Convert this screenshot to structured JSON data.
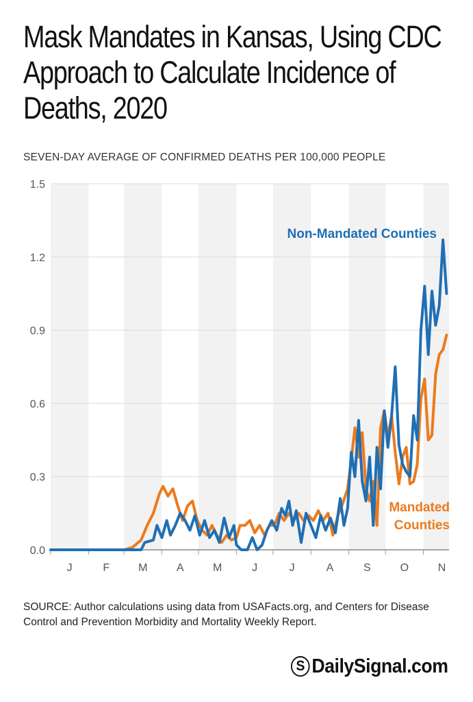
{
  "title": "Mask Mandates in Kansas, Using CDC Approach to Calculate Incidence of Deaths, 2020",
  "source": "SOURCE: Author calculations using data from USAFacts.org, and Centers for Disease Control and Prevention Morbidity and Mortality Weekly Report.",
  "brand": {
    "symbol": "S",
    "name": "DailySignal.com"
  },
  "colors": {
    "non_mandated": "#1f6fb5",
    "mandated": "#ec7a1c",
    "band": "#f2f2f2"
  },
  "chart_data": {
    "type": "line",
    "ylabel": "SEVEN-DAY AVERAGE OF CONFIRMED DEATHS PER 100,000 PEOPLE",
    "ylim": [
      0,
      1.5
    ],
    "yticks": [
      "0.0",
      "0.3",
      "0.6",
      "0.9",
      "1.2",
      "1.5"
    ],
    "xlim": [
      "2020-01-01",
      "2020-11-22"
    ],
    "xticks": [
      "J",
      "F",
      "M",
      "A",
      "M",
      "J",
      "J",
      "A",
      "S",
      "O",
      "N"
    ],
    "grid": true,
    "series": [
      {
        "name": "Non-Mandated Counties",
        "label_lines": [
          "Non-Mandated Counties"
        ],
        "color": "#1f6fb5",
        "points": [
          [
            "2020-01-01",
            0
          ],
          [
            "2020-03-15",
            0
          ],
          [
            "2020-03-18",
            0.03
          ],
          [
            "2020-03-25",
            0.04
          ],
          [
            "2020-03-28",
            0.1
          ],
          [
            "2020-04-01",
            0.05
          ],
          [
            "2020-04-05",
            0.12
          ],
          [
            "2020-04-08",
            0.06
          ],
          [
            "2020-04-12",
            0.1
          ],
          [
            "2020-04-16",
            0.15
          ],
          [
            "2020-04-20",
            0.12
          ],
          [
            "2020-04-24",
            0.08
          ],
          [
            "2020-04-28",
            0.14
          ],
          [
            "2020-05-02",
            0.06
          ],
          [
            "2020-05-06",
            0.12
          ],
          [
            "2020-05-10",
            0.05
          ],
          [
            "2020-05-14",
            0.08
          ],
          [
            "2020-05-18",
            0.03
          ],
          [
            "2020-05-22",
            0.13
          ],
          [
            "2020-05-26",
            0.05
          ],
          [
            "2020-05-30",
            0.1
          ],
          [
            "2020-06-01",
            0.02
          ],
          [
            "2020-06-05",
            0.0
          ],
          [
            "2020-06-10",
            0.0
          ],
          [
            "2020-06-14",
            0.05
          ],
          [
            "2020-06-18",
            0.0
          ],
          [
            "2020-06-22",
            0.02
          ],
          [
            "2020-06-26",
            0.08
          ],
          [
            "2020-06-30",
            0.12
          ],
          [
            "2020-07-04",
            0.08
          ],
          [
            "2020-07-08",
            0.17
          ],
          [
            "2020-07-11",
            0.14
          ],
          [
            "2020-07-14",
            0.2
          ],
          [
            "2020-07-17",
            0.1
          ],
          [
            "2020-07-20",
            0.16
          ],
          [
            "2020-07-24",
            0.03
          ],
          [
            "2020-07-28",
            0.15
          ],
          [
            "2020-08-01",
            0.1
          ],
          [
            "2020-08-05",
            0.05
          ],
          [
            "2020-08-09",
            0.14
          ],
          [
            "2020-08-13",
            0.08
          ],
          [
            "2020-08-17",
            0.13
          ],
          [
            "2020-08-21",
            0.07
          ],
          [
            "2020-08-25",
            0.21
          ],
          [
            "2020-08-28",
            0.1
          ],
          [
            "2020-08-31",
            0.17
          ],
          [
            "2020-09-03",
            0.4
          ],
          [
            "2020-09-06",
            0.3
          ],
          [
            "2020-09-09",
            0.53
          ],
          [
            "2020-09-12",
            0.28
          ],
          [
            "2020-09-15",
            0.2
          ],
          [
            "2020-09-18",
            0.38
          ],
          [
            "2020-09-21",
            0.1
          ],
          [
            "2020-09-24",
            0.42
          ],
          [
            "2020-09-27",
            0.25
          ],
          [
            "2020-09-30",
            0.57
          ],
          [
            "2020-10-03",
            0.42
          ],
          [
            "2020-10-06",
            0.55
          ],
          [
            "2020-10-09",
            0.75
          ],
          [
            "2020-10-12",
            0.43
          ],
          [
            "2020-10-15",
            0.35
          ],
          [
            "2020-10-18",
            0.32
          ],
          [
            "2020-10-21",
            0.3
          ],
          [
            "2020-10-24",
            0.55
          ],
          [
            "2020-10-27",
            0.45
          ],
          [
            "2020-10-30",
            0.9
          ],
          [
            "2020-11-02",
            1.08
          ],
          [
            "2020-11-05",
            0.8
          ],
          [
            "2020-11-08",
            1.06
          ],
          [
            "2020-11-11",
            0.92
          ],
          [
            "2020-11-14",
            1.0
          ],
          [
            "2020-11-17",
            1.27
          ],
          [
            "2020-11-20",
            1.05
          ]
        ]
      },
      {
        "name": "Mandated Counties",
        "label_lines": [
          "Mandated",
          "Counties"
        ],
        "color": "#ec7a1c",
        "points": [
          [
            "2020-01-01",
            0
          ],
          [
            "2020-03-01",
            0.0
          ],
          [
            "2020-03-08",
            0.01
          ],
          [
            "2020-03-15",
            0.04
          ],
          [
            "2020-03-20",
            0.1
          ],
          [
            "2020-03-25",
            0.15
          ],
          [
            "2020-03-30",
            0.23
          ],
          [
            "2020-04-02",
            0.26
          ],
          [
            "2020-04-06",
            0.22
          ],
          [
            "2020-04-10",
            0.25
          ],
          [
            "2020-04-14",
            0.18
          ],
          [
            "2020-04-18",
            0.12
          ],
          [
            "2020-04-22",
            0.18
          ],
          [
            "2020-04-26",
            0.2
          ],
          [
            "2020-04-30",
            0.12
          ],
          [
            "2020-05-04",
            0.08
          ],
          [
            "2020-05-08",
            0.06
          ],
          [
            "2020-05-12",
            0.1
          ],
          [
            "2020-05-16",
            0.06
          ],
          [
            "2020-05-20",
            0.03
          ],
          [
            "2020-05-24",
            0.06
          ],
          [
            "2020-05-28",
            0.04
          ],
          [
            "2020-06-01",
            0.05
          ],
          [
            "2020-06-04",
            0.1
          ],
          [
            "2020-06-08",
            0.1
          ],
          [
            "2020-06-12",
            0.12
          ],
          [
            "2020-06-16",
            0.07
          ],
          [
            "2020-06-20",
            0.1
          ],
          [
            "2020-06-24",
            0.06
          ],
          [
            "2020-06-28",
            0.1
          ],
          [
            "2020-07-02",
            0.1
          ],
          [
            "2020-07-06",
            0.15
          ],
          [
            "2020-07-10",
            0.12
          ],
          [
            "2020-07-14",
            0.15
          ],
          [
            "2020-07-18",
            0.12
          ],
          [
            "2020-07-22",
            0.15
          ],
          [
            "2020-07-26",
            0.12
          ],
          [
            "2020-07-30",
            0.14
          ],
          [
            "2020-08-03",
            0.12
          ],
          [
            "2020-08-07",
            0.16
          ],
          [
            "2020-08-11",
            0.12
          ],
          [
            "2020-08-15",
            0.15
          ],
          [
            "2020-08-19",
            0.06
          ],
          [
            "2020-08-23",
            0.14
          ],
          [
            "2020-08-27",
            0.19
          ],
          [
            "2020-08-31",
            0.25
          ],
          [
            "2020-09-03",
            0.37
          ],
          [
            "2020-09-06",
            0.5
          ],
          [
            "2020-09-09",
            0.38
          ],
          [
            "2020-09-12",
            0.48
          ],
          [
            "2020-09-15",
            0.25
          ],
          [
            "2020-09-18",
            0.2
          ],
          [
            "2020-09-21",
            0.28
          ],
          [
            "2020-09-24",
            0.1
          ],
          [
            "2020-09-27",
            0.5
          ],
          [
            "2020-09-30",
            0.57
          ],
          [
            "2020-10-03",
            0.46
          ],
          [
            "2020-10-06",
            0.55
          ],
          [
            "2020-10-09",
            0.4
          ],
          [
            "2020-10-12",
            0.27
          ],
          [
            "2020-10-15",
            0.38
          ],
          [
            "2020-10-18",
            0.42
          ],
          [
            "2020-10-21",
            0.27
          ],
          [
            "2020-10-24",
            0.28
          ],
          [
            "2020-10-27",
            0.35
          ],
          [
            "2020-10-30",
            0.62
          ],
          [
            "2020-11-02",
            0.7
          ],
          [
            "2020-11-05",
            0.45
          ],
          [
            "2020-11-08",
            0.47
          ],
          [
            "2020-11-11",
            0.72
          ],
          [
            "2020-11-14",
            0.8
          ],
          [
            "2020-11-17",
            0.82
          ],
          [
            "2020-11-20",
            0.88
          ]
        ]
      }
    ]
  }
}
